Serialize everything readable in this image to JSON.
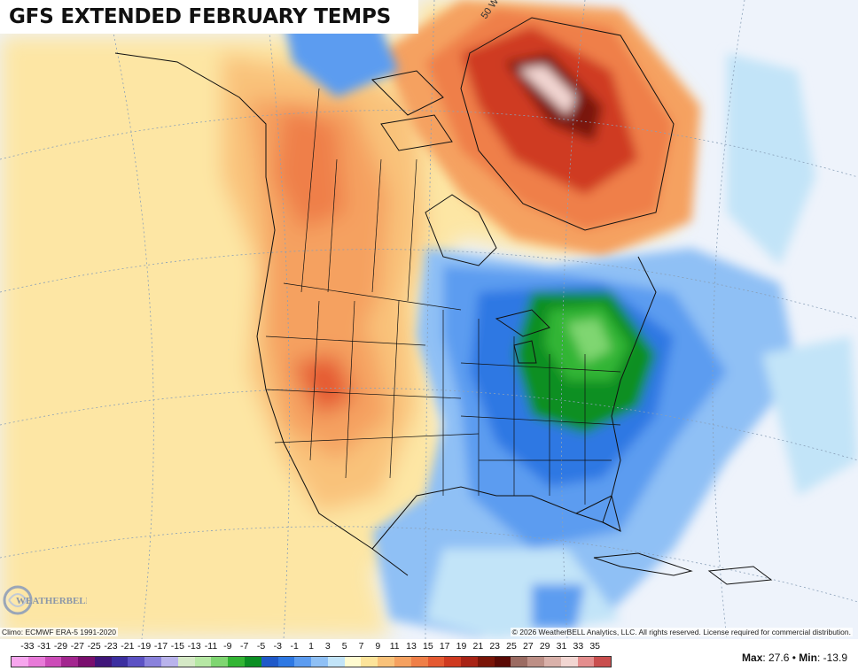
{
  "title": "GFS EXTENDED FEBRUARY TEMPS",
  "logo_text": "WEATHERBELL",
  "climo_note": "Climo: ECMWF ERA-5 1991-2020",
  "copyright": "© 2026 WeatherBELL Analytics, LLC. All rights reserved. License required for commercial distribution.",
  "graticule_label": "50 W",
  "legend": {
    "ticks": [
      "-33",
      "-31",
      "-29",
      "-27",
      "-25",
      "-23",
      "-21",
      "-19",
      "-17",
      "-15",
      "-13",
      "-11",
      "-9",
      "-7",
      "-5",
      "-3",
      "-1",
      "1",
      "3",
      "5",
      "7",
      "9",
      "11",
      "13",
      "15",
      "17",
      "19",
      "21",
      "23",
      "25",
      "27",
      "29",
      "31",
      "33",
      "35"
    ],
    "colors": [
      "#f7a6ee",
      "#e87ad8",
      "#cc4cb8",
      "#a3268f",
      "#7a0f6e",
      "#40167a",
      "#3c2fa0",
      "#5c52c4",
      "#8a82dc",
      "#b9b3ec",
      "#d5e9c6",
      "#b6e8a4",
      "#7fd671",
      "#33b534",
      "#0c8f24",
      "#1f59c9",
      "#2e78e3",
      "#5c9cf0",
      "#8fc0f5",
      "#c2e4f8",
      "#fffbd0",
      "#fde49a",
      "#f9c27a",
      "#f5a160",
      "#ef7f48",
      "#e55a32",
      "#cf3a20",
      "#a82315",
      "#7a1508",
      "#5a0a05",
      "#9b6b62",
      "#bd8f86",
      "#d9b1aa",
      "#f2d6d2",
      "#e48e8e",
      "#c94e4e"
    ],
    "stats_max_label": "Max",
    "stats_max": "27.6",
    "stats_sep": "•",
    "stats_min_label": "Min",
    "stats_min": "-13.9"
  }
}
